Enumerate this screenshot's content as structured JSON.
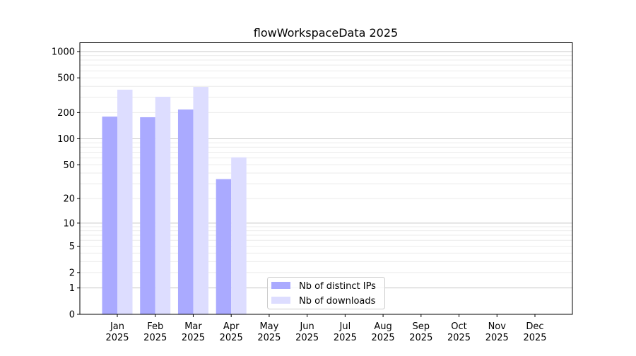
{
  "chart_data": {
    "type": "bar",
    "title": "flowWorkspaceData 2025",
    "xlabel": "",
    "ylabel": "",
    "yscale": "symlog (log10(1+y))",
    "ylim": [
      0,
      1270
    ],
    "grid": true,
    "legend_position": "bottom-center",
    "categories": [
      "Jan\n2025",
      "Feb\n2025",
      "Mar\n2025",
      "Apr\n2025",
      "May\n2025",
      "Jun\n2025",
      "Jul\n2025",
      "Aug\n2025",
      "Sep\n2025",
      "Oct\n2025",
      "Nov\n2025",
      "Dec\n2025"
    ],
    "category_labels": [
      {
        "month": "Jan",
        "year": "2025"
      },
      {
        "month": "Feb",
        "year": "2025"
      },
      {
        "month": "Mar",
        "year": "2025"
      },
      {
        "month": "Apr",
        "year": "2025"
      },
      {
        "month": "May",
        "year": "2025"
      },
      {
        "month": "Jun",
        "year": "2025"
      },
      {
        "month": "Jul",
        "year": "2025"
      },
      {
        "month": "Aug",
        "year": "2025"
      },
      {
        "month": "Sep",
        "year": "2025"
      },
      {
        "month": "Oct",
        "year": "2025"
      },
      {
        "month": "Nov",
        "year": "2025"
      },
      {
        "month": "Dec",
        "year": "2025"
      }
    ],
    "yticks": [
      0,
      1,
      2,
      5,
      10,
      20,
      50,
      100,
      200,
      500,
      1000
    ],
    "series": [
      {
        "name": "Nb of distinct IPs",
        "color": "#aaaaff",
        "values": [
          180,
          177,
          217,
          34,
          0,
          0,
          0,
          0,
          0,
          0,
          0,
          0
        ]
      },
      {
        "name": "Nb of downloads",
        "color": "#ddddff",
        "values": [
          366,
          304,
          394,
          61,
          0,
          0,
          0,
          0,
          0,
          0,
          0,
          0
        ]
      }
    ]
  }
}
